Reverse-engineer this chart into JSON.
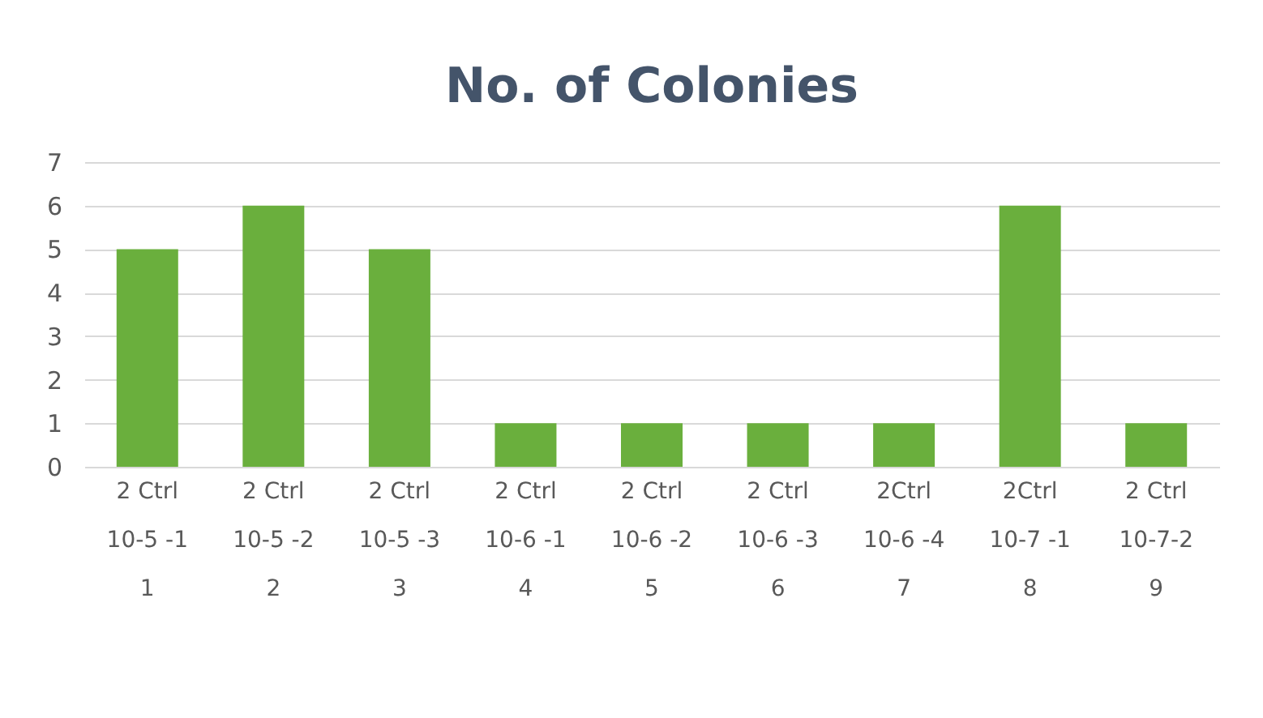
{
  "chart_data": {
    "type": "bar",
    "title": "No. of Colonies",
    "categories": [
      "2 Ctrl\n10-5 -1\n1",
      "2 Ctrl\n10-5 -2\n2",
      "2 Ctrl\n10-5 -3\n3",
      "2 Ctrl\n10-6 -1\n4",
      "2 Ctrl\n10-6 -2\n5",
      "2 Ctrl\n10-6 -3\n6",
      "2Ctrl\n10-6 -4\n7",
      "2Ctrl\n10-7 -1\n8",
      "2 Ctrl\n10-7-2\n9"
    ],
    "values": [
      5,
      6,
      5,
      1,
      1,
      1,
      1,
      6,
      1
    ],
    "color": "#6aaf3d",
    "ylim": [
      0,
      7
    ],
    "yticks": [
      0,
      1,
      2,
      3,
      4,
      5,
      6,
      7
    ],
    "grid": "y"
  }
}
